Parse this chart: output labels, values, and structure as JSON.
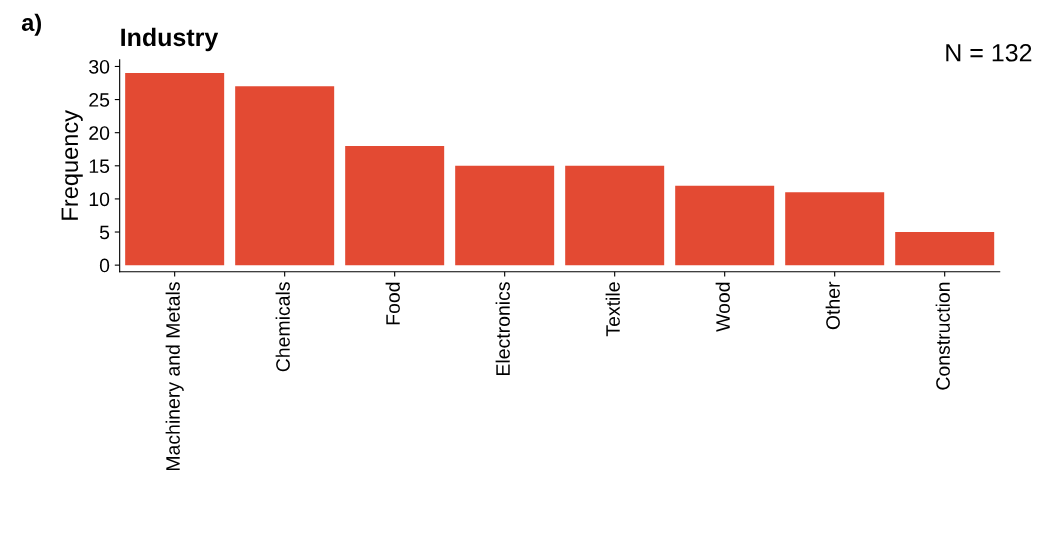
{
  "chart_data": {
    "type": "bar",
    "title": "Industry",
    "ylabel": "Frequency",
    "categories": [
      "Machinery and Metals",
      "Chemicals",
      "Food",
      "Electronics",
      "Textile",
      "Wood",
      "Other",
      "Construction"
    ],
    "values": [
      29,
      27,
      18,
      15,
      15,
      12,
      11,
      5
    ],
    "color": "#e34a33",
    "ylim": [
      -1,
      31
    ],
    "yticks": [
      0,
      5,
      10,
      15,
      20,
      25,
      30
    ],
    "grid": false,
    "legend": false,
    "annotations": [
      "a)",
      "N = 132"
    ]
  }
}
